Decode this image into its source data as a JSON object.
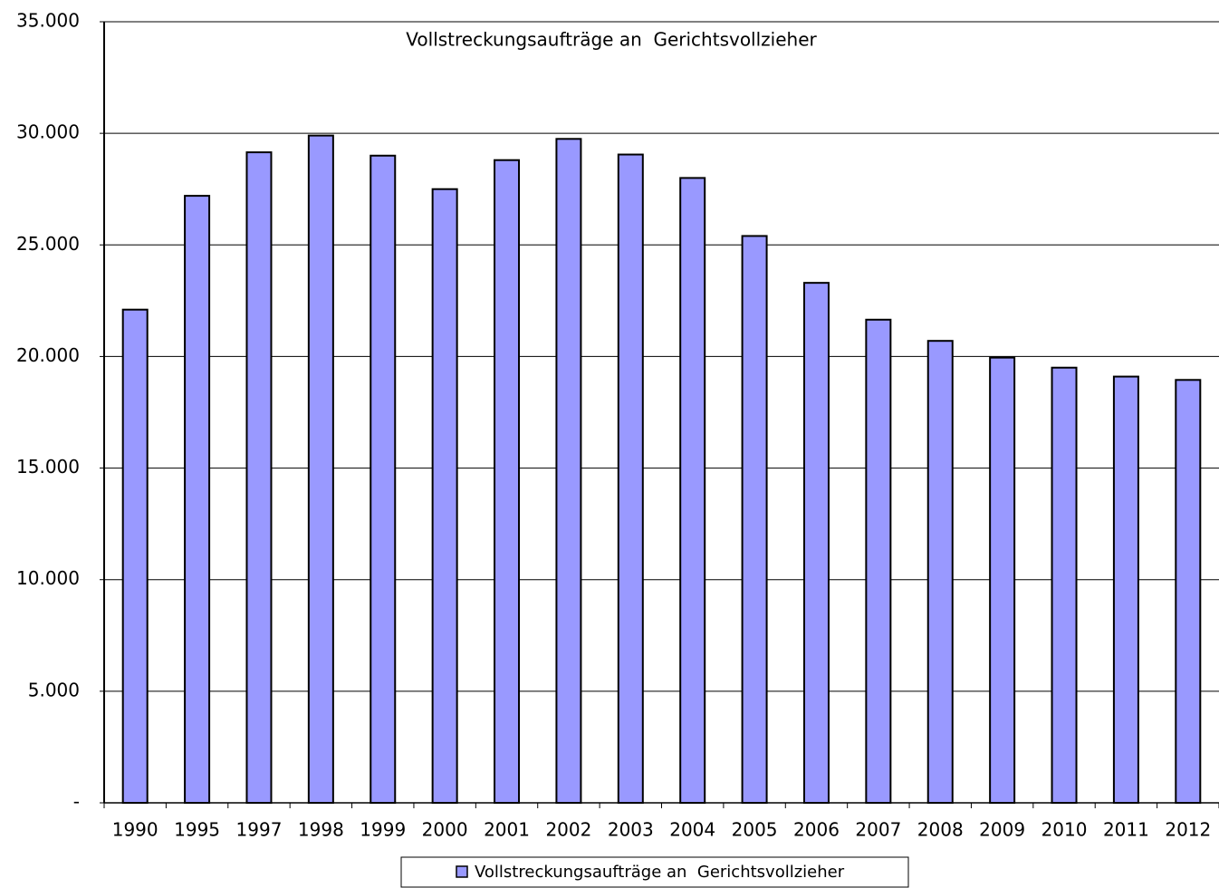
{
  "chart_data": {
    "type": "bar",
    "title": "Vollstreckungsaufträge an  Gerichtsvollzieher",
    "categories": [
      "1990",
      "1995",
      "1997",
      "1998",
      "1999",
      "2000",
      "2001",
      "2002",
      "2003",
      "2004",
      "2005",
      "2006",
      "2007",
      "2008",
      "2009",
      "2010",
      "2011",
      "2012"
    ],
    "series": [
      {
        "name": "Vollstreckungsaufträge an  Gerichtsvollzieher",
        "color": "#9999ff",
        "values": [
          22100,
          27200,
          29150,
          29900,
          29000,
          27500,
          28800,
          29750,
          29050,
          28000,
          25400,
          23300,
          21650,
          20700,
          19950,
          19500,
          19100,
          18950
        ]
      }
    ],
    "ylim": [
      0,
      35000
    ],
    "yticks": [
      {
        "value": 0,
        "label": "-"
      },
      {
        "value": 5000,
        "label": "5.000"
      },
      {
        "value": 10000,
        "label": "10.000"
      },
      {
        "value": 15000,
        "label": "15.000"
      },
      {
        "value": 20000,
        "label": "20.000"
      },
      {
        "value": 25000,
        "label": "25.000"
      },
      {
        "value": 30000,
        "label": "30.000"
      },
      {
        "value": 35000,
        "label": "35.000"
      }
    ],
    "grid": true,
    "legend": "bottom"
  }
}
